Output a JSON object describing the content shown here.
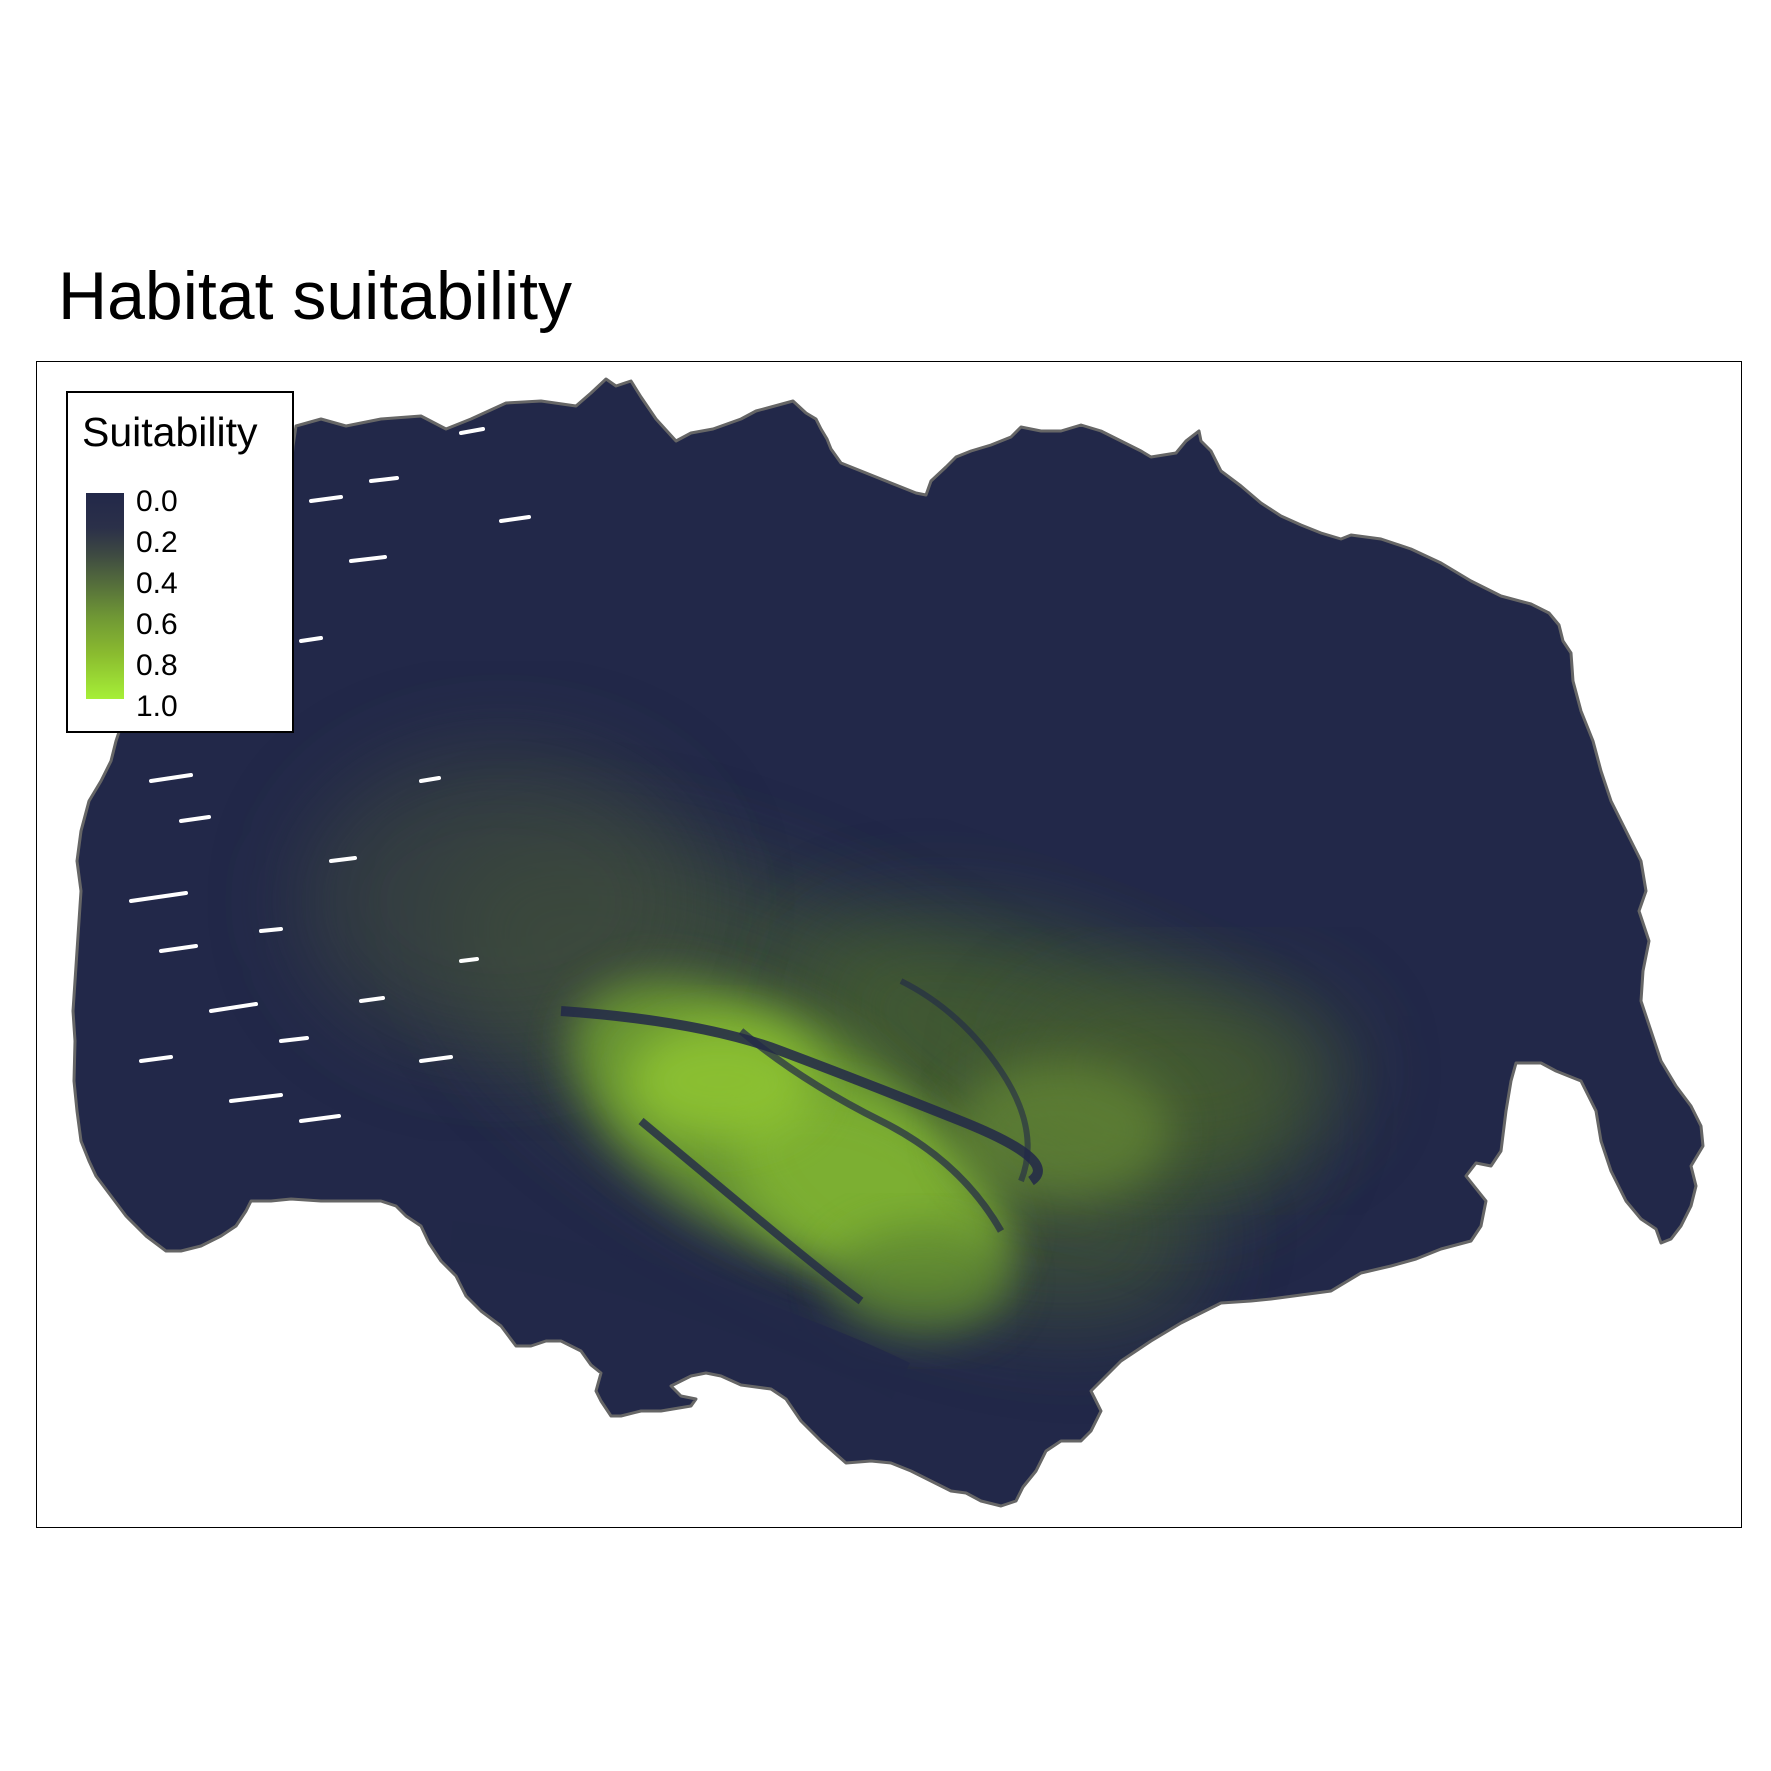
{
  "title": "Habitat suitability",
  "legend": {
    "title": "Suitability",
    "ticks": [
      "0.0",
      "0.2",
      "0.4",
      "0.6",
      "0.8",
      "1.0"
    ],
    "palette": {
      "low": "#222849",
      "mid": "#56703b",
      "high": "#a6ef37"
    }
  },
  "map": {
    "background_color": "#222849",
    "outline_color": "#666666",
    "high_suitability_color": "#a6ef37"
  }
}
